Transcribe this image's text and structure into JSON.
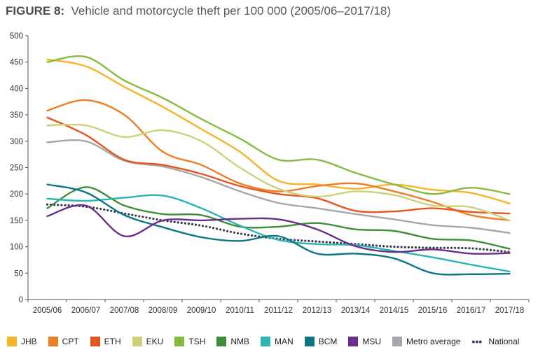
{
  "title": {
    "figure": "FIGURE 8:",
    "text": "Vehicle and motorcycle theft per 100 000 (2005/06–2017/18)"
  },
  "chart_data": {
    "type": "line",
    "categories": [
      "2005/06",
      "2006/07",
      "2007/08",
      "2008/09",
      "2009/10",
      "2010/11",
      "2011/12",
      "2012/13",
      "2013/14",
      "2014/15",
      "2015/16",
      "2016/17",
      "2017/18"
    ],
    "ylim": [
      0,
      500
    ],
    "yticks": [
      0,
      50,
      100,
      150,
      200,
      250,
      300,
      350,
      400,
      450,
      500
    ],
    "grid": false,
    "legend_position": "bottom",
    "series": [
      {
        "name": "JHB",
        "color": "#f7b32b",
        "style": "solid",
        "values": [
          455,
          442,
          403,
          365,
          323,
          280,
          225,
          218,
          210,
          218,
          208,
          202,
          182
        ]
      },
      {
        "name": "CPT",
        "color": "#ef7d22",
        "style": "solid",
        "values": [
          358,
          378,
          350,
          280,
          255,
          220,
          205,
          215,
          220,
          205,
          185,
          160,
          150
        ]
      },
      {
        "name": "ETH",
        "color": "#e8541e",
        "style": "solid",
        "values": [
          345,
          312,
          265,
          255,
          238,
          215,
          200,
          192,
          168,
          167,
          173,
          166,
          163
        ]
      },
      {
        "name": "EKU",
        "color": "#cfd07a",
        "style": "solid",
        "values": [
          330,
          330,
          308,
          321,
          300,
          250,
          210,
          195,
          205,
          198,
          178,
          175,
          150
        ]
      },
      {
        "name": "TSH",
        "color": "#86bc3f",
        "style": "solid",
        "values": [
          450,
          460,
          415,
          382,
          342,
          305,
          265,
          265,
          240,
          218,
          200,
          212,
          200
        ]
      },
      {
        "name": "NMB",
        "color": "#3f8f3a",
        "style": "solid",
        "values": [
          173,
          213,
          178,
          162,
          160,
          138,
          138,
          145,
          133,
          130,
          115,
          112,
          96
        ]
      },
      {
        "name": "MAN",
        "color": "#2db4b4",
        "style": "solid",
        "values": [
          191,
          187,
          193,
          197,
          173,
          140,
          113,
          105,
          103,
          92,
          80,
          66,
          53
        ]
      },
      {
        "name": "BCM",
        "color": "#0c7683",
        "style": "solid",
        "values": [
          218,
          203,
          160,
          137,
          118,
          111,
          120,
          87,
          87,
          78,
          50,
          48,
          49
        ]
      },
      {
        "name": "MSU",
        "color": "#6a2c8c",
        "style": "solid",
        "values": [
          158,
          178,
          120,
          150,
          150,
          153,
          152,
          133,
          101,
          90,
          95,
          87,
          88
        ]
      },
      {
        "name": "Metro average",
        "color": "#a7a6ab",
        "style": "solid",
        "values": [
          298,
          300,
          263,
          252,
          232,
          205,
          183,
          173,
          162,
          152,
          141,
          136,
          126
        ]
      },
      {
        "name": "National",
        "color": "#3b3b50",
        "style": "dotted",
        "values": [
          180,
          176,
          163,
          150,
          140,
          125,
          115,
          110,
          105,
          100,
          98,
          97,
          90
        ]
      }
    ]
  }
}
